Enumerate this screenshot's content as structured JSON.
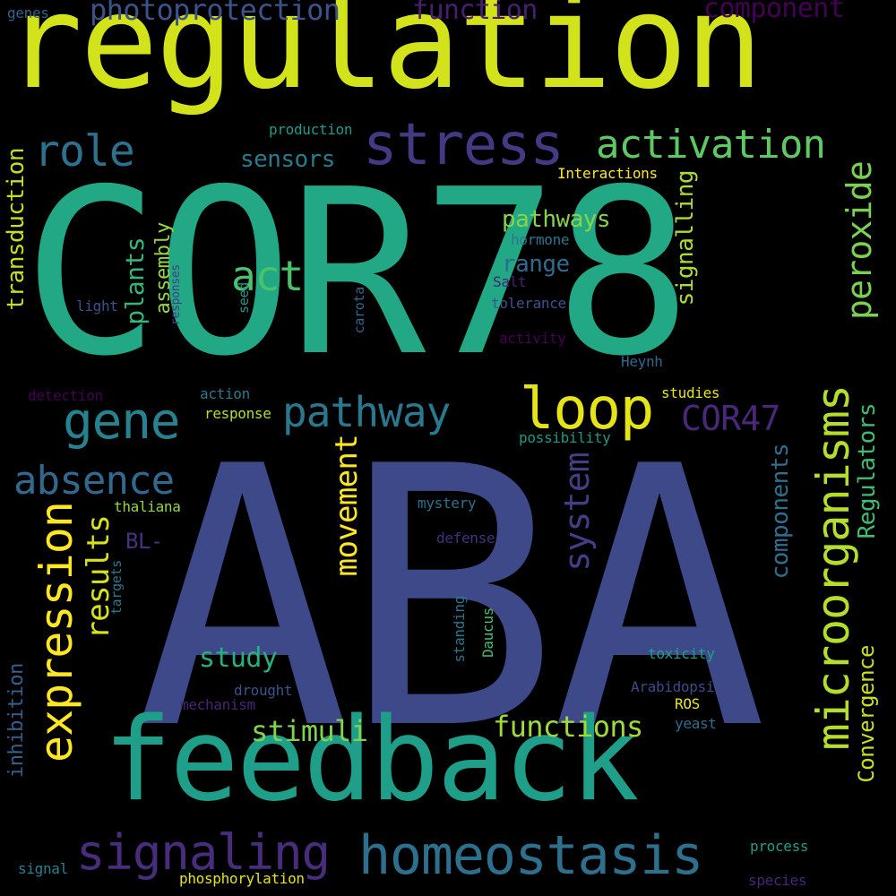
{
  "words": [
    {
      "text": "ABA",
      "color": "#3e4989",
      "rotate": false
    },
    {
      "text": "COR78",
      "color": "#22a884",
      "rotate": false
    },
    {
      "text": "regulation",
      "color": "#d2e21b",
      "rotate": false
    },
    {
      "text": "feedback",
      "color": "#1f9e89",
      "rotate": false
    },
    {
      "text": "homeostasis",
      "color": "#2d708e",
      "rotate": false
    },
    {
      "text": "signaling",
      "color": "#472d7b",
      "rotate": false
    },
    {
      "text": "expression",
      "color": "#fde725",
      "rotate": true
    },
    {
      "text": "microorganisms",
      "color": "#b5de2b",
      "rotate": true
    },
    {
      "text": "stress",
      "color": "#443a83",
      "rotate": false
    },
    {
      "text": "loop",
      "color": "#e5e419",
      "rotate": false
    },
    {
      "text": "gene",
      "color": "#26828e",
      "rotate": false
    },
    {
      "text": "pathway",
      "color": "#2a788e",
      "rotate": false
    },
    {
      "text": "role",
      "color": "#2c728e",
      "rotate": false
    },
    {
      "text": "activation",
      "color": "#5ec962",
      "rotate": false
    },
    {
      "text": "absence",
      "color": "#31688e",
      "rotate": false
    },
    {
      "text": "act",
      "color": "#4ac16d",
      "rotate": false
    },
    {
      "text": "COR47",
      "color": "#482878",
      "rotate": false
    },
    {
      "text": "peroxide",
      "color": "#7ad151",
      "rotate": true
    },
    {
      "text": "movement",
      "color": "#fde725",
      "rotate": true
    },
    {
      "text": "results",
      "color": "#d8e219",
      "rotate": true
    },
    {
      "text": "system",
      "color": "#433e85",
      "rotate": true
    },
    {
      "text": "photoprotection",
      "color": "#3b528b",
      "rotate": false
    },
    {
      "text": "function",
      "color": "#481f70",
      "rotate": false
    },
    {
      "text": "component",
      "color": "#440154",
      "rotate": false
    },
    {
      "text": "functions",
      "color": "#a0da39",
      "rotate": false
    },
    {
      "text": "stimuli",
      "color": "#7fd34e",
      "rotate": false
    },
    {
      "text": "study",
      "color": "#29af7f",
      "rotate": false
    },
    {
      "text": "transduction",
      "color": "#c2df23",
      "rotate": true
    },
    {
      "text": "plants",
      "color": "#35b779",
      "rotate": true
    },
    {
      "text": "Regulators",
      "color": "#3fbc73",
      "rotate": true
    },
    {
      "text": "Convergence",
      "color": "#c8e020",
      "rotate": true
    },
    {
      "text": "components",
      "color": "#2e6f8e",
      "rotate": true
    },
    {
      "text": "signalling",
      "color": "#addc30",
      "rotate": true
    },
    {
      "text": "pathways",
      "color": "#86d549",
      "rotate": false
    },
    {
      "text": "range",
      "color": "#306a8e",
      "rotate": false
    },
    {
      "text": "sensors",
      "color": "#287c8e",
      "rotate": false
    },
    {
      "text": "assembly",
      "color": "#98d83e",
      "rotate": true
    },
    {
      "text": "inhibition",
      "color": "#34618d",
      "rotate": true
    },
    {
      "text": "BL-",
      "color": "#46327e",
      "rotate": false
    },
    {
      "text": "genes",
      "color": "#33638d",
      "rotate": false
    },
    {
      "text": "production",
      "color": "#1f9a8a",
      "rotate": false
    },
    {
      "text": "Interactions",
      "color": "#fde725",
      "rotate": false
    },
    {
      "text": "hormone",
      "color": "#2a768e",
      "rotate": false
    },
    {
      "text": "Salt",
      "color": "#482173",
      "rotate": false
    },
    {
      "text": "tolerance",
      "color": "#3a548c",
      "rotate": false
    },
    {
      "text": "light",
      "color": "#3b518b",
      "rotate": false
    },
    {
      "text": "responses",
      "color": "#443b84",
      "rotate": true
    },
    {
      "text": "seed",
      "color": "#1f978b",
      "rotate": true
    },
    {
      "text": "carota",
      "color": "#31688e",
      "rotate": true
    },
    {
      "text": "activity",
      "color": "#440154",
      "rotate": false
    },
    {
      "text": "Heynh",
      "color": "#31688e",
      "rotate": false
    },
    {
      "text": "detection",
      "color": "#440154",
      "rotate": false
    },
    {
      "text": "action",
      "color": "#2a788e",
      "rotate": false
    },
    {
      "text": "response",
      "color": "#b5de2b",
      "rotate": false
    },
    {
      "text": "studies",
      "color": "#e5e419",
      "rotate": false
    },
    {
      "text": "possibility",
      "color": "#1f988b",
      "rotate": false
    },
    {
      "text": "thaliana",
      "color": "#90d743",
      "rotate": false
    },
    {
      "text": "mystery",
      "color": "#2c728e",
      "rotate": false
    },
    {
      "text": "defense",
      "color": "#46307e",
      "rotate": false
    },
    {
      "text": "targets",
      "color": "#2a788e",
      "rotate": true
    },
    {
      "text": "standing",
      "color": "#2a768e",
      "rotate": true
    },
    {
      "text": "Daucus",
      "color": "#44bf70",
      "rotate": true
    },
    {
      "text": "toxicity",
      "color": "#1fa088",
      "rotate": false
    },
    {
      "text": "drought",
      "color": "#3b528b",
      "rotate": false
    },
    {
      "text": "Arabidopsis",
      "color": "#3e4a89",
      "rotate": false
    },
    {
      "text": "mechanism",
      "color": "#482475",
      "rotate": false
    },
    {
      "text": "ROS",
      "color": "#e7e419",
      "rotate": false
    },
    {
      "text": "yeast",
      "color": "#2e6e8e",
      "rotate": false
    },
    {
      "text": "process",
      "color": "#1f9e89",
      "rotate": false
    },
    {
      "text": "signal",
      "color": "#26828e",
      "rotate": false
    },
    {
      "text": "phosphorylation",
      "color": "#e3e418",
      "rotate": false
    },
    {
      "text": "species",
      "color": "#482677",
      "rotate": false
    }
  ]
}
